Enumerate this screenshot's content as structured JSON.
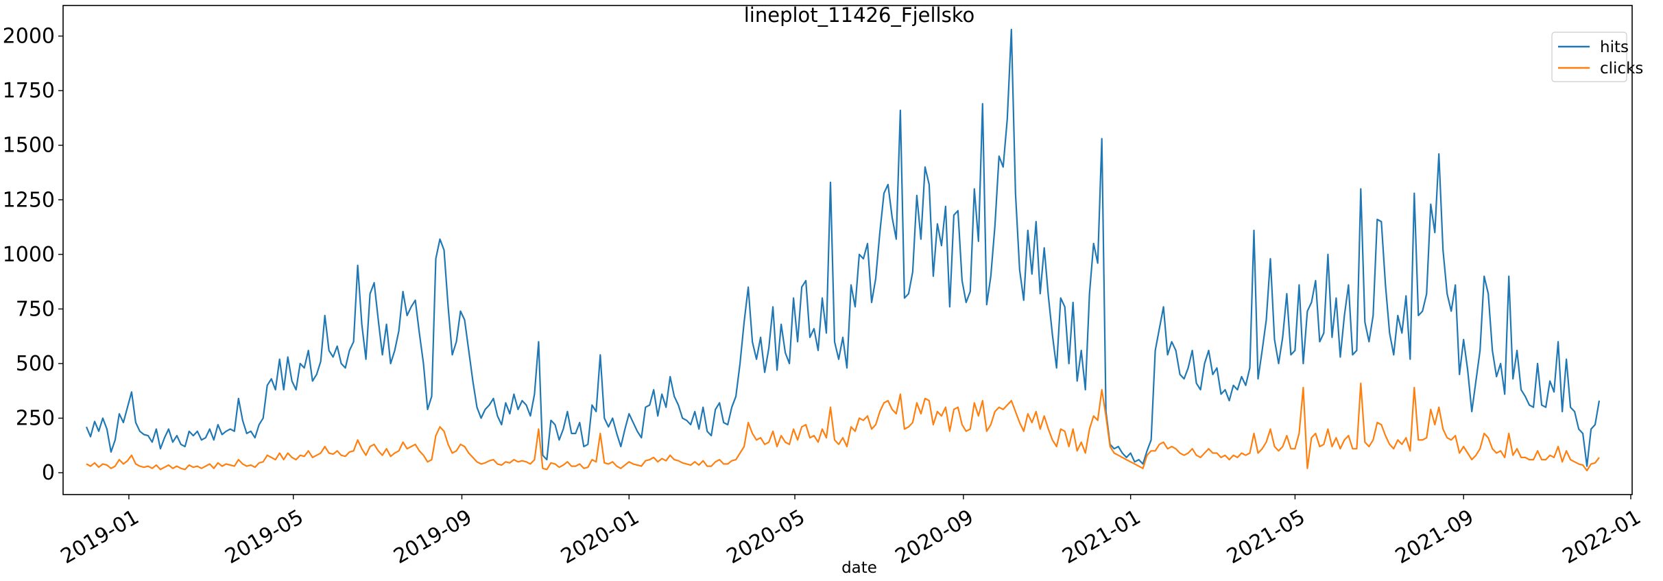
{
  "chart_data": {
    "type": "line",
    "title": "lineplot_11426_Fjellsko",
    "xlabel": "date",
    "ylabel": "",
    "x_type": "date",
    "x_start": "2018-12-01",
    "x_step_days": 3,
    "xlim": [
      "2018-11-14",
      "2022-01-02"
    ],
    "ylim": [
      -100,
      2140
    ],
    "x_ticks": [
      {
        "date": "2019-01-01",
        "label": "2019-01"
      },
      {
        "date": "2019-05-01",
        "label": "2019-05"
      },
      {
        "date": "2019-09-01",
        "label": "2019-09"
      },
      {
        "date": "2020-01-01",
        "label": "2020-01"
      },
      {
        "date": "2020-05-01",
        "label": "2020-05"
      },
      {
        "date": "2020-09-01",
        "label": "2020-09"
      },
      {
        "date": "2021-01-01",
        "label": "2021-01"
      },
      {
        "date": "2021-05-01",
        "label": "2021-05"
      },
      {
        "date": "2021-09-01",
        "label": "2021-09"
      },
      {
        "date": "2022-01-01",
        "label": "2022-01"
      }
    ],
    "y_ticks": [
      0,
      250,
      500,
      750,
      1000,
      1250,
      1500,
      1750,
      2000
    ],
    "grid": false,
    "legend_position": "top-right",
    "series": [
      {
        "name": "hits",
        "color": "#1f77b4",
        "values": [
          210,
          165,
          235,
          190,
          250,
          200,
          95,
          150,
          270,
          230,
          300,
          370,
          230,
          190,
          175,
          170,
          140,
          200,
          110,
          160,
          200,
          140,
          170,
          130,
          120,
          190,
          170,
          190,
          150,
          160,
          200,
          150,
          220,
          175,
          190,
          200,
          190,
          340,
          240,
          180,
          190,
          160,
          220,
          250,
          400,
          430,
          380,
          520,
          380,
          530,
          420,
          380,
          500,
          480,
          560,
          420,
          450,
          510,
          720,
          560,
          530,
          580,
          500,
          480,
          560,
          600,
          950,
          680,
          520,
          820,
          870,
          700,
          540,
          680,
          500,
          560,
          650,
          830,
          720,
          760,
          790,
          640,
          500,
          290,
          350,
          980,
          1070,
          1020,
          760,
          540,
          600,
          740,
          700,
          560,
          420,
          300,
          250,
          290,
          310,
          340,
          260,
          220,
          320,
          270,
          360,
          290,
          330,
          310,
          260,
          360,
          600,
          80,
          60,
          240,
          220,
          150,
          200,
          280,
          180,
          180,
          230,
          120,
          130,
          310,
          280,
          540,
          250,
          210,
          250,
          180,
          120,
          200,
          270,
          230,
          190,
          160,
          300,
          310,
          380,
          260,
          360,
          300,
          440,
          350,
          310,
          250,
          240,
          220,
          280,
          200,
          300,
          190,
          170,
          290,
          320,
          230,
          220,
          300,
          350,
          500,
          690,
          850,
          600,
          520,
          620,
          460,
          570,
          760,
          470,
          680,
          550,
          500,
          800,
          600,
          850,
          880,
          620,
          660,
          560,
          800,
          640,
          1330,
          600,
          520,
          620,
          480,
          860,
          760,
          1000,
          980,
          1050,
          780,
          890,
          1100,
          1280,
          1320,
          1170,
          1070,
          1660,
          800,
          820,
          920,
          1270,
          1070,
          1400,
          1320,
          900,
          1140,
          1040,
          1220,
          760,
          1180,
          1200,
          880,
          780,
          830,
          1300,
          1060,
          1690,
          770,
          900,
          1130,
          1450,
          1400,
          1620,
          2030,
          1280,
          930,
          790,
          1110,
          910,
          1150,
          820,
          1030,
          810,
          630,
          480,
          800,
          760,
          500,
          780,
          420,
          560,
          380,
          820,
          1050,
          960,
          1530,
          280,
          130,
          110,
          120,
          90,
          70,
          90,
          50,
          60,
          40,
          100,
          150,
          560,
          660,
          760,
          540,
          600,
          560,
          450,
          430,
          480,
          560,
          410,
          380,
          500,
          560,
          450,
          480,
          360,
          380,
          330,
          400,
          380,
          440,
          400,
          480,
          1110,
          430,
          560,
          700,
          980,
          610,
          500,
          620,
          820,
          540,
          560,
          860,
          500,
          740,
          780,
          880,
          600,
          640,
          1000,
          620,
          800,
          530,
          720,
          860,
          540,
          560,
          1300,
          690,
          600,
          720,
          1160,
          1150,
          860,
          640,
          540,
          720,
          640,
          810,
          520,
          1280,
          720,
          740,
          820,
          1230,
          1100,
          1460,
          1020,
          820,
          740,
          860,
          450,
          610,
          470,
          280,
          420,
          560,
          900,
          820,
          560,
          440,
          500,
          360,
          900,
          430,
          560,
          380,
          350,
          310,
          300,
          500,
          310,
          300,
          420,
          370,
          600,
          280,
          520,
          300,
          280,
          200,
          180,
          30,
          200,
          220,
          330
        ]
      },
      {
        "name": "clicks",
        "color": "#ff7f0e",
        "values": [
          40,
          30,
          45,
          25,
          40,
          35,
          20,
          30,
          60,
          40,
          55,
          80,
          40,
          30,
          25,
          30,
          20,
          35,
          15,
          25,
          35,
          20,
          30,
          20,
          15,
          35,
          25,
          30,
          20,
          30,
          40,
          20,
          45,
          30,
          40,
          35,
          30,
          60,
          40,
          30,
          35,
          25,
          45,
          50,
          80,
          70,
          60,
          90,
          60,
          90,
          70,
          60,
          80,
          75,
          100,
          70,
          80,
          90,
          120,
          90,
          85,
          100,
          80,
          75,
          95,
          100,
          150,
          110,
          80,
          120,
          130,
          100,
          80,
          110,
          75,
          90,
          100,
          140,
          110,
          120,
          130,
          100,
          80,
          50,
          60,
          170,
          210,
          190,
          130,
          90,
          100,
          130,
          120,
          90,
          70,
          50,
          40,
          45,
          55,
          60,
          40,
          35,
          50,
          45,
          60,
          50,
          55,
          50,
          40,
          60,
          200,
          20,
          15,
          45,
          40,
          25,
          35,
          50,
          30,
          30,
          40,
          20,
          25,
          60,
          50,
          180,
          45,
          40,
          50,
          30,
          20,
          35,
          50,
          40,
          35,
          30,
          55,
          60,
          70,
          50,
          65,
          55,
          80,
          60,
          55,
          45,
          40,
          35,
          50,
          35,
          55,
          30,
          30,
          50,
          60,
          40,
          40,
          55,
          60,
          90,
          120,
          230,
          180,
          150,
          160,
          130,
          140,
          190,
          120,
          170,
          140,
          130,
          200,
          150,
          210,
          220,
          160,
          170,
          140,
          200,
          160,
          300,
          150,
          130,
          160,
          120,
          210,
          190,
          250,
          240,
          260,
          200,
          220,
          280,
          320,
          330,
          290,
          270,
          360,
          200,
          210,
          230,
          320,
          270,
          340,
          330,
          220,
          280,
          260,
          300,
          190,
          290,
          300,
          220,
          190,
          200,
          320,
          260,
          330,
          190,
          220,
          280,
          300,
          290,
          310,
          330,
          280,
          230,
          190,
          270,
          230,
          280,
          200,
          260,
          200,
          150,
          120,
          200,
          190,
          120,
          200,
          100,
          140,
          90,
          200,
          260,
          240,
          380,
          260,
          120,
          90,
          80,
          70,
          60,
          50,
          40,
          30,
          20,
          80,
          100,
          100,
          130,
          140,
          110,
          120,
          110,
          90,
          80,
          90,
          110,
          80,
          70,
          90,
          110,
          90,
          90,
          70,
          80,
          60,
          80,
          70,
          90,
          80,
          90,
          180,
          90,
          110,
          140,
          200,
          120,
          100,
          120,
          170,
          110,
          110,
          180,
          390,
          20,
          160,
          180,
          120,
          130,
          200,
          120,
          160,
          110,
          150,
          170,
          110,
          110,
          410,
          140,
          120,
          150,
          230,
          220,
          170,
          130,
          110,
          150,
          130,
          160,
          100,
          390,
          150,
          150,
          160,
          290,
          220,
          300,
          200,
          160,
          150,
          170,
          90,
          120,
          90,
          60,
          80,
          110,
          180,
          160,
          110,
          90,
          100,
          70,
          180,
          80,
          110,
          70,
          70,
          60,
          60,
          100,
          60,
          60,
          80,
          70,
          120,
          50,
          100,
          60,
          50,
          40,
          35,
          10,
          40,
          45,
          70
        ]
      }
    ]
  }
}
